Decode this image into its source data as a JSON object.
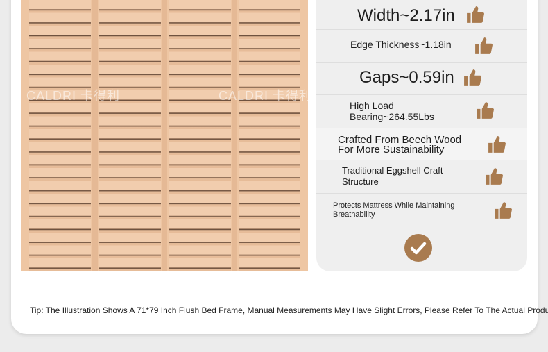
{
  "watermark": "CALDRI 卡得利",
  "features": [
    {
      "label": "Width~2.17in"
    },
    {
      "label": "Edge Thickness~1.18in"
    },
    {
      "label": "Gaps~0.59in"
    },
    {
      "label": "High Load Bearing~264.55Lbs"
    },
    {
      "label": "Crafted From Beech Wood For More Sustainability"
    },
    {
      "label": "Traditional Eggshell Craft Structure"
    },
    {
      "label": "Protects Mattress While Maintaining Breathability"
    }
  ],
  "icons": {
    "feature": "thumbs-up-icon",
    "summary": "checkmark-icon"
  },
  "colors": {
    "accent": "#a97b4f",
    "panel": "#efefef",
    "wood": "#eec6a3"
  },
  "tip": "Tip: The Illustration Shows A 71*79 Inch Flush Bed Frame, Manual Measurements May Have Slight Errors, Please Refer To The Actual Product"
}
